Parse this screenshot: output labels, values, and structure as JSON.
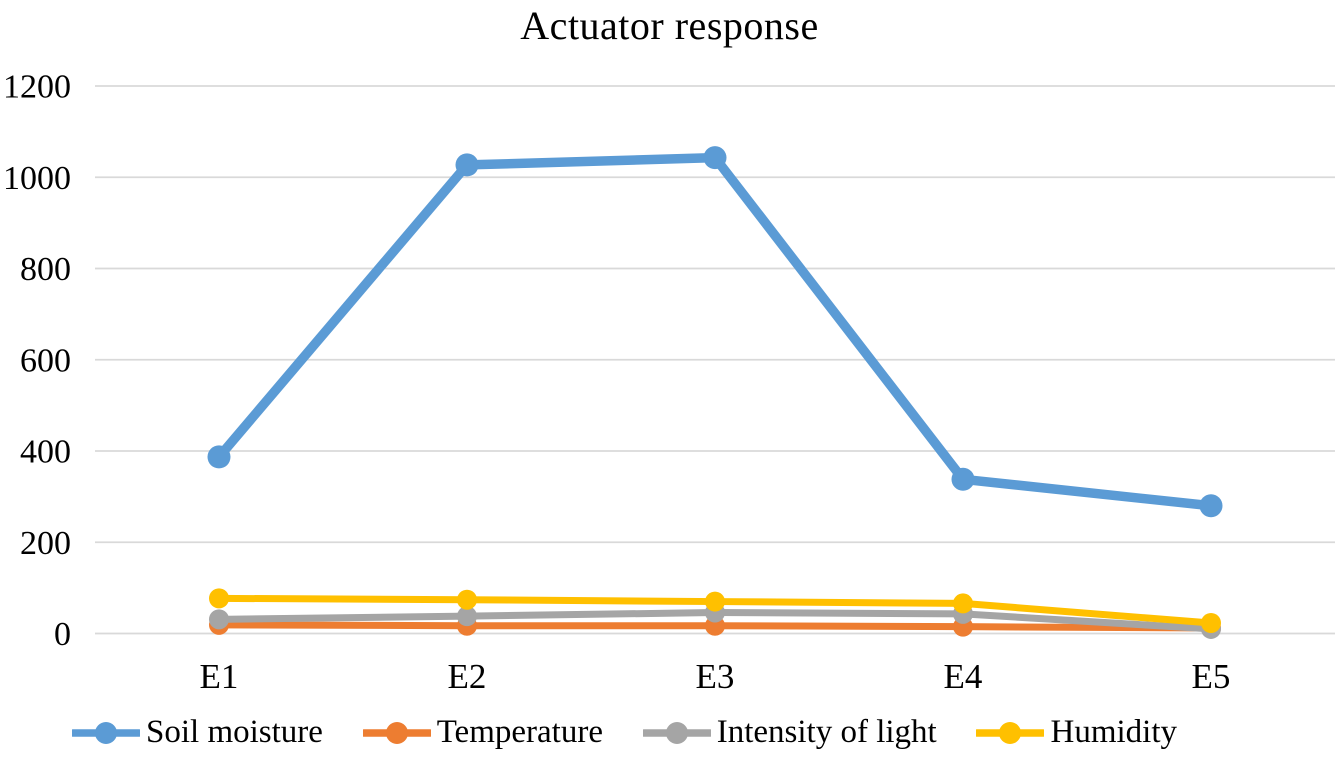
{
  "chart_data": {
    "type": "line",
    "title": "Actuator response",
    "categories": [
      "E1",
      "E2",
      "E3",
      "E4",
      "E5"
    ],
    "series": [
      {
        "name": "Soil moisture",
        "color": "#5B9BD5",
        "values": [
          387,
          1027,
          1043,
          338,
          280
        ]
      },
      {
        "name": "Temperature",
        "color": "#ED7D31",
        "values": [
          19,
          17,
          17,
          15,
          12
        ]
      },
      {
        "name": "Intensity of light",
        "color": "#A5A5A5",
        "values": [
          31,
          38,
          46,
          43,
          10
        ]
      },
      {
        "name": "Humidity",
        "color": "#FFC000",
        "values": [
          77,
          74,
          70,
          66,
          23
        ]
      }
    ],
    "ylim": [
      0,
      1200
    ],
    "yticks": [
      0,
      200,
      400,
      600,
      800,
      1000,
      1200
    ],
    "xlabel": "",
    "ylabel": "",
    "grid": "horizontal",
    "grid_color": "#D9D9D9",
    "text_color": "#000000",
    "background": "#FFFFFF",
    "legend_position": "bottom",
    "marker": "circle"
  }
}
